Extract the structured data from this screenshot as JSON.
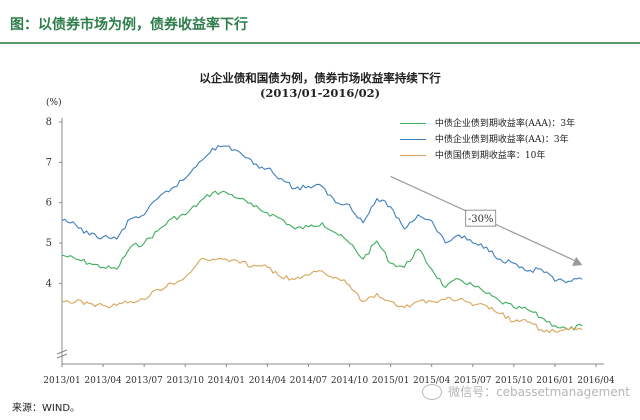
{
  "figure": {
    "title": "图：以债券市场为例，债券收益率下行",
    "source": "来源：WIND。",
    "watermark": "微信号：cebassetmanagement"
  },
  "chart_data": {
    "type": "line",
    "title": "以企业债和国债为例，债券市场收益率持续下行",
    "subtitle": "(2013/01-2016/02)",
    "ylabel": "(%)",
    "ylim": [
      2,
      8
    ],
    "yticks": [
      4,
      5,
      6,
      7,
      8
    ],
    "xlim": [
      "2013/01",
      "2016/04"
    ],
    "xticks": [
      "2013/01",
      "2013/04",
      "2013/07",
      "2013/10",
      "2014/01",
      "2014/04",
      "2014/07",
      "2014/10",
      "2015/01",
      "2015/04",
      "2015/07",
      "2015/10",
      "2016/01",
      "2016/04"
    ],
    "legend_position": "top-right",
    "grid": false,
    "annotation": {
      "text": "-30%",
      "arrow_from": [
        "2015/01",
        6.65
      ],
      "arrow_to": [
        "2016/03",
        4.45
      ]
    },
    "series": [
      {
        "name": "中债企业债到期收益率(AAA)：3年",
        "color": "#3fae5d",
        "points": [
          [
            "2013/01",
            4.7
          ],
          [
            "2013/02",
            4.6
          ],
          [
            "2013/03",
            4.5
          ],
          [
            "2013/04",
            4.4
          ],
          [
            "2013/05",
            4.35
          ],
          [
            "2013/06",
            4.9
          ],
          [
            "2013/07",
            5.0
          ],
          [
            "2013/08",
            5.3
          ],
          [
            "2013/09",
            5.6
          ],
          [
            "2013/10",
            5.7
          ],
          [
            "2013/11",
            6.0
          ],
          [
            "2013/12",
            6.25
          ],
          [
            "2014/01",
            6.25
          ],
          [
            "2014/02",
            6.1
          ],
          [
            "2014/03",
            5.9
          ],
          [
            "2014/04",
            5.75
          ],
          [
            "2014/05",
            5.6
          ],
          [
            "2014/06",
            5.35
          ],
          [
            "2014/07",
            5.4
          ],
          [
            "2014/08",
            5.5
          ],
          [
            "2014/09",
            5.25
          ],
          [
            "2014/10",
            5.0
          ],
          [
            "2014/11",
            4.6
          ],
          [
            "2014/12",
            5.05
          ],
          [
            "2015/01",
            4.5
          ],
          [
            "2015/02",
            4.4
          ],
          [
            "2015/03",
            4.85
          ],
          [
            "2015/04",
            4.35
          ],
          [
            "2015/05",
            3.9
          ],
          [
            "2015/06",
            4.1
          ],
          [
            "2015/07",
            3.95
          ],
          [
            "2015/08",
            3.75
          ],
          [
            "2015/09",
            3.55
          ],
          [
            "2015/10",
            3.4
          ],
          [
            "2015/11",
            3.35
          ],
          [
            "2015/12",
            3.15
          ],
          [
            "2016/01",
            2.95
          ],
          [
            "2016/02",
            2.85
          ],
          [
            "2016/03",
            2.95
          ]
        ]
      },
      {
        "name": "中债企业债到期收益率(AA)：3年",
        "color": "#3f7fc0",
        "points": [
          [
            "2013/01",
            5.55
          ],
          [
            "2013/02",
            5.45
          ],
          [
            "2013/03",
            5.2
          ],
          [
            "2013/04",
            5.15
          ],
          [
            "2013/05",
            5.1
          ],
          [
            "2013/06",
            5.6
          ],
          [
            "2013/07",
            5.7
          ],
          [
            "2013/08",
            6.1
          ],
          [
            "2013/09",
            6.35
          ],
          [
            "2013/10",
            6.6
          ],
          [
            "2013/11",
            7.0
          ],
          [
            "2013/12",
            7.35
          ],
          [
            "2014/01",
            7.4
          ],
          [
            "2014/02",
            7.25
          ],
          [
            "2014/03",
            6.95
          ],
          [
            "2014/04",
            6.85
          ],
          [
            "2014/05",
            6.6
          ],
          [
            "2014/06",
            6.35
          ],
          [
            "2014/07",
            6.4
          ],
          [
            "2014/08",
            6.4
          ],
          [
            "2014/09",
            6.0
          ],
          [
            "2014/10",
            5.95
          ],
          [
            "2014/11",
            5.5
          ],
          [
            "2014/12",
            6.1
          ],
          [
            "2015/01",
            5.9
          ],
          [
            "2015/02",
            5.35
          ],
          [
            "2015/03",
            5.7
          ],
          [
            "2015/04",
            5.55
          ],
          [
            "2015/05",
            5.0
          ],
          [
            "2015/06",
            5.2
          ],
          [
            "2015/07",
            5.0
          ],
          [
            "2015/08",
            4.9
          ],
          [
            "2015/09",
            4.6
          ],
          [
            "2015/10",
            4.5
          ],
          [
            "2015/11",
            4.3
          ],
          [
            "2015/12",
            4.35
          ],
          [
            "2016/01",
            4.05
          ],
          [
            "2016/02",
            4.05
          ],
          [
            "2016/03",
            4.1
          ]
        ]
      },
      {
        "name": "中债国债到期收益率：10年",
        "color": "#d8a55a",
        "points": [
          [
            "2013/01",
            3.55
          ],
          [
            "2013/02",
            3.55
          ],
          [
            "2013/03",
            3.5
          ],
          [
            "2013/04",
            3.45
          ],
          [
            "2013/05",
            3.45
          ],
          [
            "2013/06",
            3.55
          ],
          [
            "2013/07",
            3.6
          ],
          [
            "2013/08",
            3.85
          ],
          [
            "2013/09",
            4.0
          ],
          [
            "2013/10",
            4.15
          ],
          [
            "2013/11",
            4.55
          ],
          [
            "2013/12",
            4.6
          ],
          [
            "2014/01",
            4.6
          ],
          [
            "2014/02",
            4.5
          ],
          [
            "2014/03",
            4.45
          ],
          [
            "2014/04",
            4.4
          ],
          [
            "2014/05",
            4.15
          ],
          [
            "2014/06",
            4.1
          ],
          [
            "2014/07",
            4.2
          ],
          [
            "2014/08",
            4.3
          ],
          [
            "2014/09",
            4.15
          ],
          [
            "2014/10",
            3.95
          ],
          [
            "2014/11",
            3.55
          ],
          [
            "2014/12",
            3.75
          ],
          [
            "2015/01",
            3.55
          ],
          [
            "2015/02",
            3.4
          ],
          [
            "2015/03",
            3.55
          ],
          [
            "2015/04",
            3.55
          ],
          [
            "2015/05",
            3.6
          ],
          [
            "2015/06",
            3.6
          ],
          [
            "2015/07",
            3.45
          ],
          [
            "2015/08",
            3.45
          ],
          [
            "2015/09",
            3.25
          ],
          [
            "2015/10",
            3.05
          ],
          [
            "2015/11",
            3.05
          ],
          [
            "2015/12",
            2.85
          ],
          [
            "2016/01",
            2.8
          ],
          [
            "2016/02",
            2.85
          ],
          [
            "2016/03",
            2.85
          ]
        ]
      }
    ]
  }
}
